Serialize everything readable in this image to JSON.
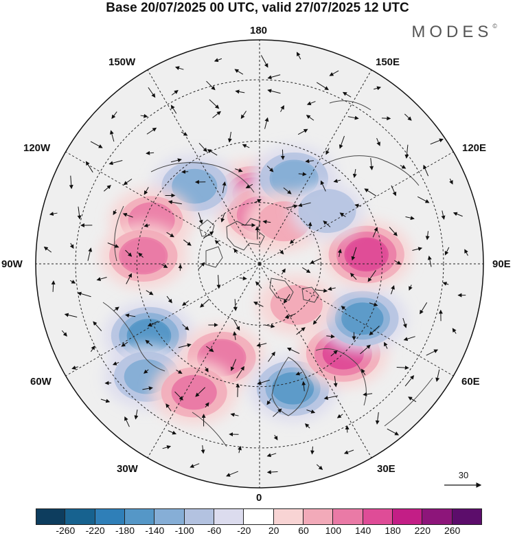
{
  "title": "Base 20/07/2025 00 UTC, valid 27/07/2025 12 UTC",
  "brand": "MODES",
  "brand_mark": "©",
  "longitude_labels": {
    "lon_180": "180",
    "lon_150w": "150W",
    "lon_150e": "150E",
    "lon_120w": "120W",
    "lon_120e": "120E",
    "lon_90w": "90W",
    "lon_90e": "90E",
    "lon_60w": "60W",
    "lon_60e": "60E",
    "lon_30w": "30W",
    "lon_30e": "30E",
    "lon_0": "0"
  },
  "reference_vector": "30",
  "colorbar": {
    "ticks": [
      "-260",
      "-220",
      "-180",
      "-140",
      "-100",
      "-60",
      "-20",
      "20",
      "60",
      "100",
      "140",
      "180",
      "220",
      "260"
    ],
    "colors": [
      "#0d3d5e",
      "#17628f",
      "#2f7fb8",
      "#5597c7",
      "#86aed6",
      "#b3c2e0",
      "#dcdcee",
      "#ffffff",
      "#f8d4d4",
      "#f2aab9",
      "#ea7aa6",
      "#df4c97",
      "#c31e86",
      "#8d157a",
      "#5c0d6b"
    ]
  },
  "anomaly_centers": [
    {
      "id": "pos-alaska",
      "sign": "positive",
      "value": 150,
      "lon": -175,
      "lat": 67
    },
    {
      "id": "pos-east-siberian-sea",
      "sign": "positive",
      "value": 130,
      "lon": 178,
      "lat": 74
    },
    {
      "id": "neg-chukotka",
      "sign": "negative",
      "value": -130,
      "lon": 158,
      "lat": 60
    },
    {
      "id": "neg-canada-northwest",
      "sign": "negative",
      "value": -120,
      "lon": -140,
      "lat": 57
    },
    {
      "id": "pos-canada-west",
      "sign": "positive",
      "value": 110,
      "lon": -112,
      "lat": 52
    },
    {
      "id": "pos-hudson-bay",
      "sign": "positive",
      "value": 130,
      "lon": -94,
      "lat": 52
    },
    {
      "id": "neg-labrador",
      "sign": "negative",
      "value": -170,
      "lon": -57,
      "lat": 47
    },
    {
      "id": "neg-atlantic-west",
      "sign": "negative",
      "value": -120,
      "lon": -45,
      "lat": 38
    },
    {
      "id": "pos-greenland-sea",
      "sign": "positive",
      "value": 130,
      "lon": -22,
      "lat": 57
    },
    {
      "id": "pos-north-atlantic",
      "sign": "positive",
      "value": 120,
      "lon": -27,
      "lat": 43
    },
    {
      "id": "neg-scandinavia",
      "sign": "negative",
      "value": -150,
      "lon": 15,
      "lat": 48
    },
    {
      "id": "pos-west-russia",
      "sign": "positive",
      "value": 160,
      "lon": 43,
      "lat": 50
    },
    {
      "id": "neg-west-siberia",
      "sign": "negative",
      "value": -150,
      "lon": 62,
      "lat": 52
    },
    {
      "id": "pos-kara-sea",
      "sign": "positive",
      "value": 80,
      "lon": 42,
      "lat": 72
    },
    {
      "id": "pos-central-siberia",
      "sign": "positive",
      "value": 170,
      "lon": 95,
      "lat": 55
    },
    {
      "id": "pos-laptev",
      "sign": "positive",
      "value": 80,
      "lon": 150,
      "lat": 74
    },
    {
      "id": "neg-yakutia",
      "sign": "negative",
      "value": -60,
      "lon": 128,
      "lat": 62
    }
  ]
}
